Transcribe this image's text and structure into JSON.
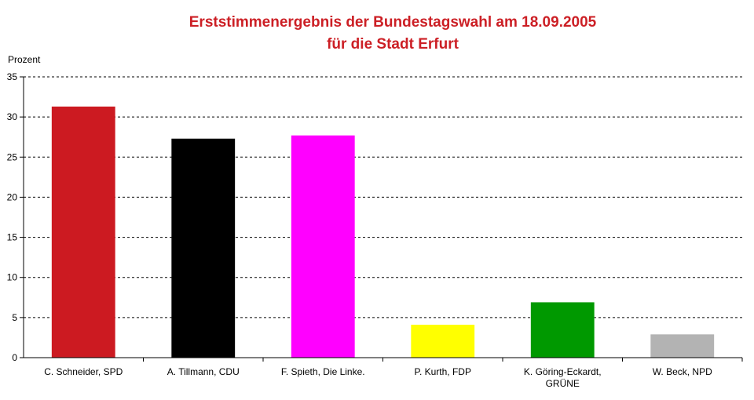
{
  "chart_data": {
    "type": "bar",
    "title_lines": [
      "Erststimmenergebnis der Bundestagswahl am 18.09.2005",
      "für die Stadt Erfurt"
    ],
    "ylabel": "Prozent",
    "xlabel": "",
    "ylim": [
      0,
      35
    ],
    "yticks": [
      "0",
      "5",
      "10",
      "15",
      "20",
      "25",
      "30",
      "35"
    ],
    "grid": true,
    "legend": false,
    "categories": [
      {
        "lines": [
          "C. Schneider, SPD"
        ]
      },
      {
        "lines": [
          "A. Tillmann, CDU"
        ]
      },
      {
        "lines": [
          "F. Spieth, Die Linke."
        ]
      },
      {
        "lines": [
          "P. Kurth, FDP"
        ]
      },
      {
        "lines": [
          "K. Göring-Eckardt,",
          "GRÜNE"
        ]
      },
      {
        "lines": [
          "W. Beck, NPD"
        ]
      }
    ],
    "values": [
      31.3,
      27.3,
      27.7,
      4.1,
      6.9,
      2.9
    ],
    "colors": [
      "#cc1a21",
      "#000000",
      "#ff00ff",
      "#ffff00",
      "#009900",
      "#b3b3b3"
    ],
    "title_color": "#cc1f25"
  }
}
